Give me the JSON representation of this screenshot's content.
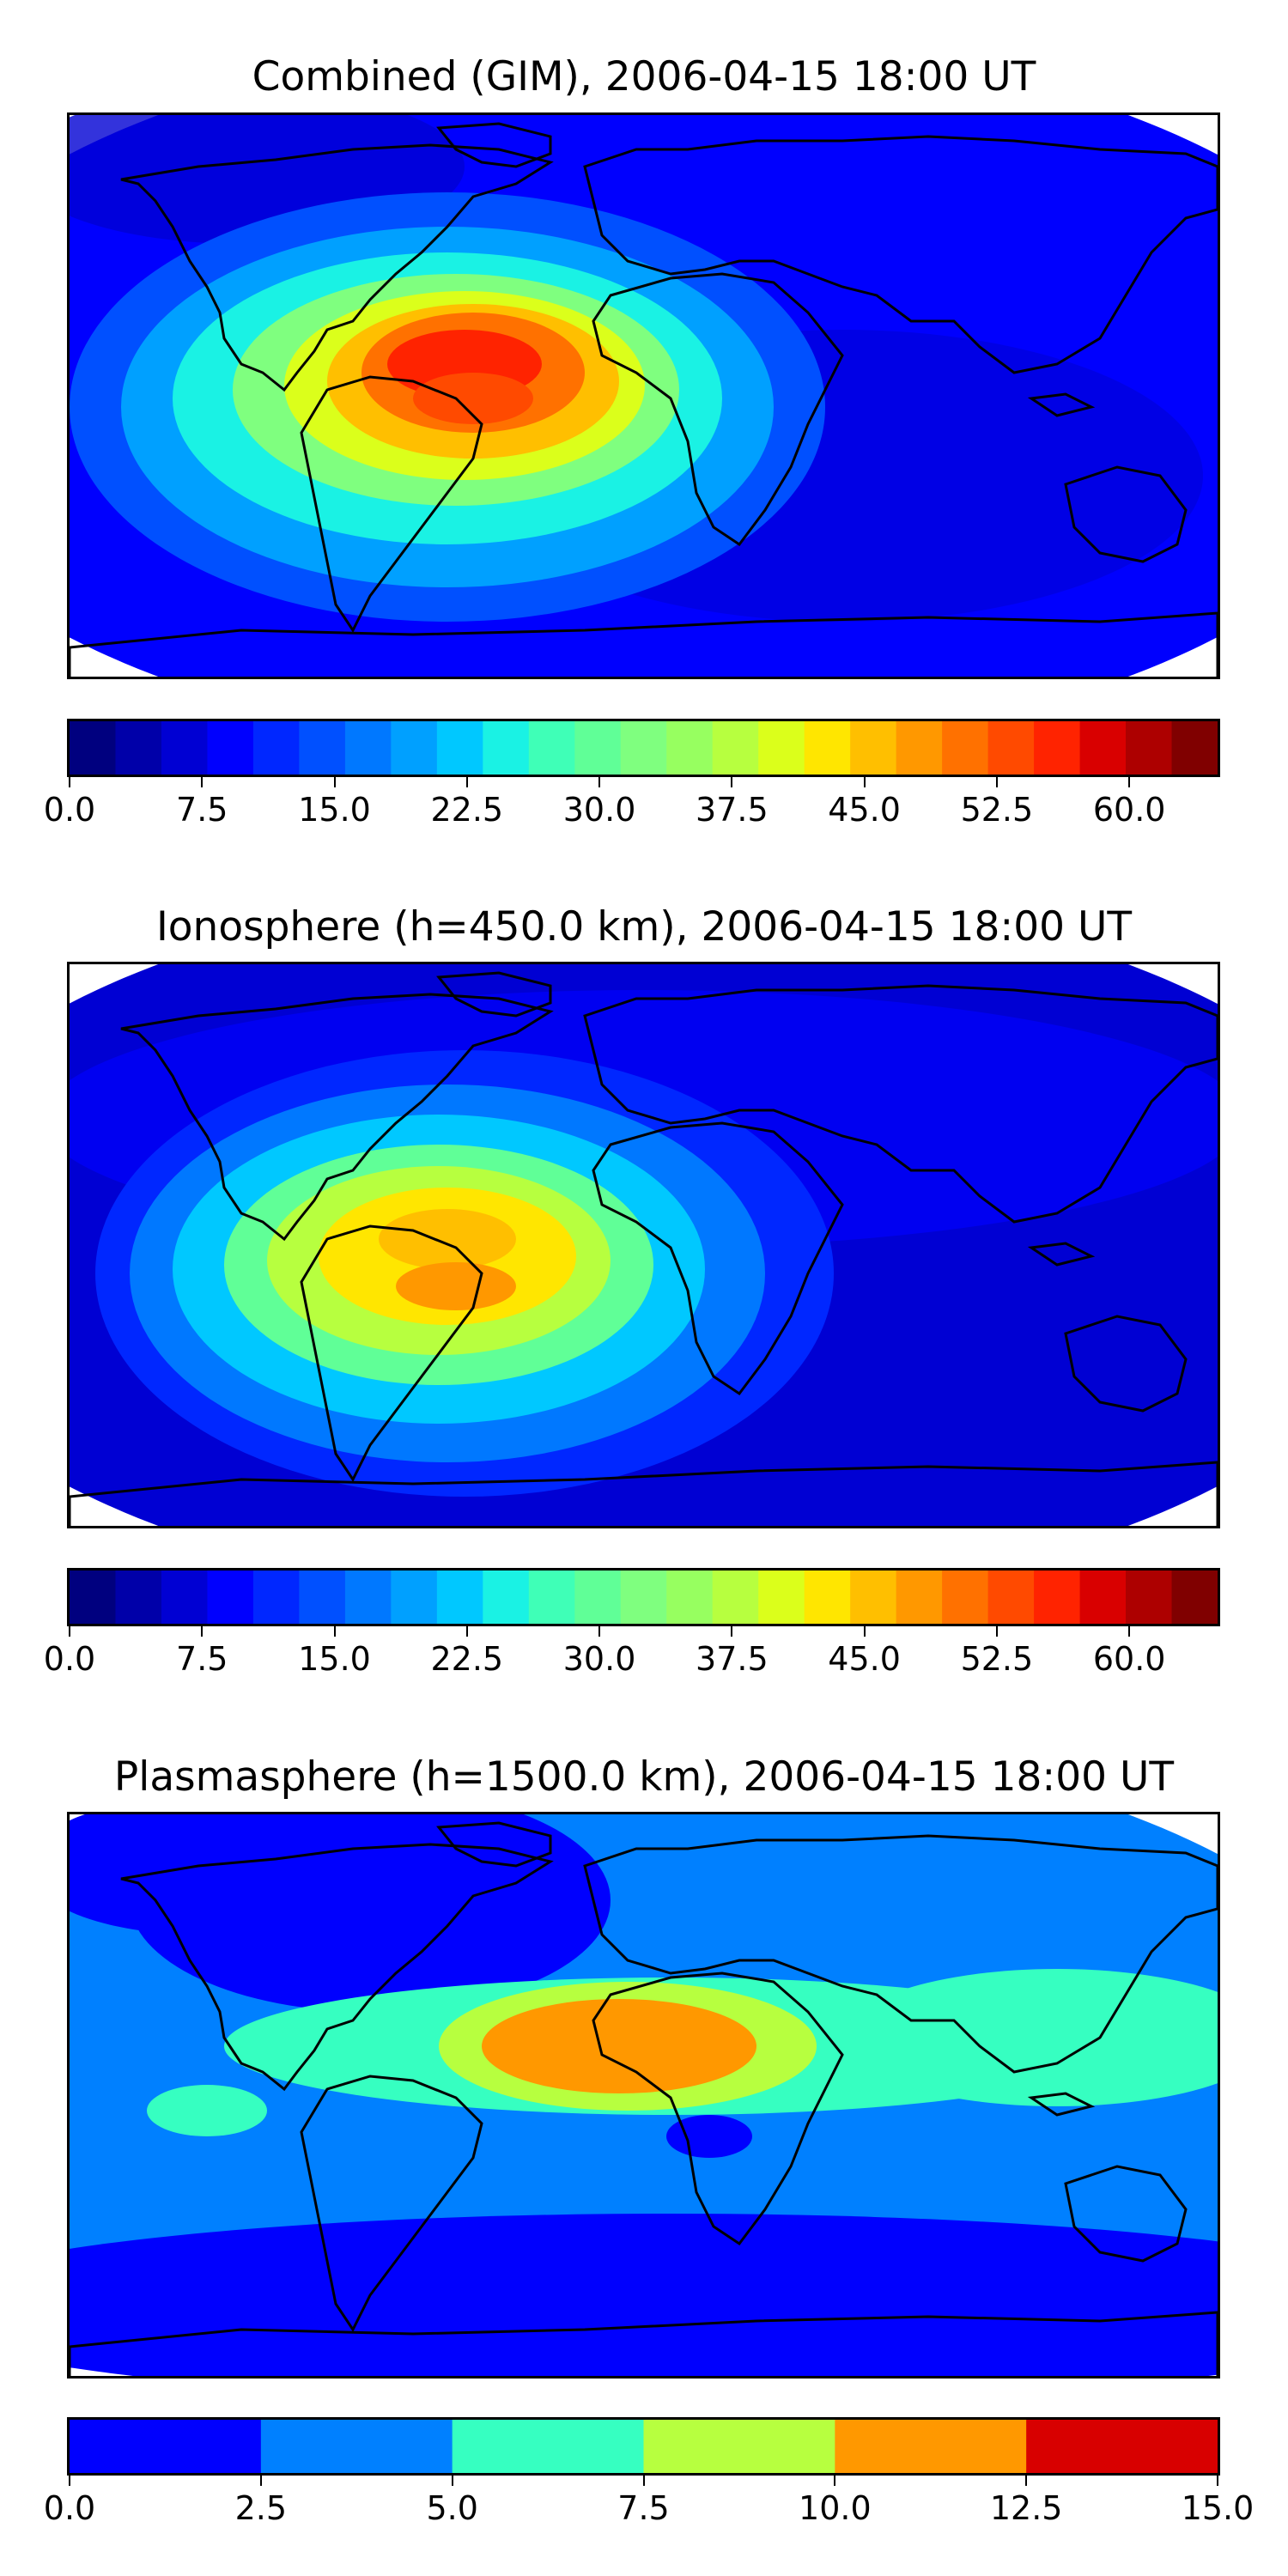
{
  "panels": [
    {
      "title": "Combined (GIM), 2006-04-15 18:00 UT",
      "colorbar": {
        "levels": [
          "#00007f",
          "#0000a9",
          "#0000d3",
          "#0000fe",
          "#0027ff",
          "#0050ff",
          "#0078ff",
          "#00a0ff",
          "#00c8ff",
          "#1af2e4",
          "#3fffb7",
          "#60ff97",
          "#7fff7f",
          "#97ff60",
          "#b7ff3f",
          "#dbff1b",
          "#ffe600",
          "#ffbf00",
          "#ff9800",
          "#ff7100",
          "#ff4a00",
          "#ff2300",
          "#d90000",
          "#ad0000",
          "#800000"
        ],
        "ticks": [
          "0.0",
          "7.5",
          "15.0",
          "22.5",
          "30.0",
          "37.5",
          "45.0",
          "52.5",
          "60.0"
        ],
        "range": [
          0,
          65
        ]
      },
      "chart_data": {
        "type": "heatmap",
        "title": "Combined (GIM), 2006-04-15 18:00 UT",
        "colorbar_range": [
          0,
          65
        ],
        "colorbar_ticks": [
          0.0,
          7.5,
          15.0,
          22.5,
          30.0,
          37.5,
          45.0,
          52.5,
          60.0
        ],
        "peak_value": 60
      }
    },
    {
      "title": "Ionosphere  (h=450.0 km), 2006-04-15 18:00 UT",
      "colorbar": {
        "levels": [
          "#00007f",
          "#0000a9",
          "#0000d3",
          "#0000fe",
          "#0027ff",
          "#0050ff",
          "#0078ff",
          "#00a0ff",
          "#00c8ff",
          "#1af2e4",
          "#3fffb7",
          "#60ff97",
          "#7fff7f",
          "#97ff60",
          "#b7ff3f",
          "#dbff1b",
          "#ffe600",
          "#ffbf00",
          "#ff9800",
          "#ff7100",
          "#ff4a00",
          "#ff2300",
          "#d90000",
          "#ad0000",
          "#800000"
        ],
        "ticks": [
          "0.0",
          "7.5",
          "15.0",
          "22.5",
          "30.0",
          "37.5",
          "45.0",
          "52.5",
          "60.0"
        ],
        "range": [
          0,
          65
        ]
      },
      "chart_data": {
        "type": "heatmap",
        "title": "Ionosphere  (h=450.0 km), 2006-04-15 18:00 UT",
        "colorbar_range": [
          0,
          65
        ],
        "colorbar_ticks": [
          0.0,
          7.5,
          15.0,
          22.5,
          30.0,
          37.5,
          45.0,
          52.5,
          60.0
        ],
        "peak_value": 48
      }
    },
    {
      "title": "Plasmasphere (h=1500.0 km), 2006-04-15 18:00 UT",
      "colorbar": {
        "levels": [
          "#0000fe",
          "#0080ff",
          "#36ffc1",
          "#b7ff3f",
          "#ff9800",
          "#d80000"
        ],
        "ticks": [
          "0.0",
          "2.5",
          "5.0",
          "7.5",
          "10.0",
          "12.5",
          "15.0"
        ],
        "range": [
          0,
          15
        ]
      },
      "chart_data": {
        "type": "heatmap",
        "title": "Plasmasphere (h=1500.0 km), 2006-04-15 18:00 UT",
        "colorbar_range": [
          0,
          15
        ],
        "colorbar_ticks": [
          0.0,
          2.5,
          5.0,
          7.5,
          10.0,
          12.5,
          15.0
        ],
        "peak_value": 11
      }
    }
  ]
}
